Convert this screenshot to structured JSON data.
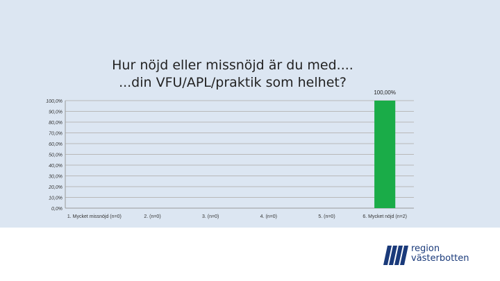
{
  "chart_data": {
    "type": "bar",
    "title_lines": [
      "Hur nöjd eller missnöjd är du med....",
      "...din VFU/APL/praktik som helhet?"
    ],
    "categories": [
      "1. Mycket missnöjd (n=0)",
      "2. (n=0)",
      "3. (n=0)",
      "4. (n=0)",
      "5. (n=0)",
      "6. Mycket nöjd (n=2)"
    ],
    "values": [
      0,
      0,
      0,
      0,
      0,
      100
    ],
    "data_labels": [
      "",
      "",
      "",
      "",
      "",
      "100,00%"
    ],
    "yticks": [
      "0,0%",
      "10,0%",
      "20,0%",
      "30,0%",
      "40,0%",
      "50,0%",
      "60,0%",
      "70,0%",
      "80,0%",
      "90,0%",
      "100,0%"
    ],
    "ylim": [
      0,
      100
    ],
    "grid": true,
    "bar_color": "#1aac48"
  },
  "logo": {
    "line1": "region",
    "line2": "västerbotten",
    "color": "#1a3a7a"
  }
}
